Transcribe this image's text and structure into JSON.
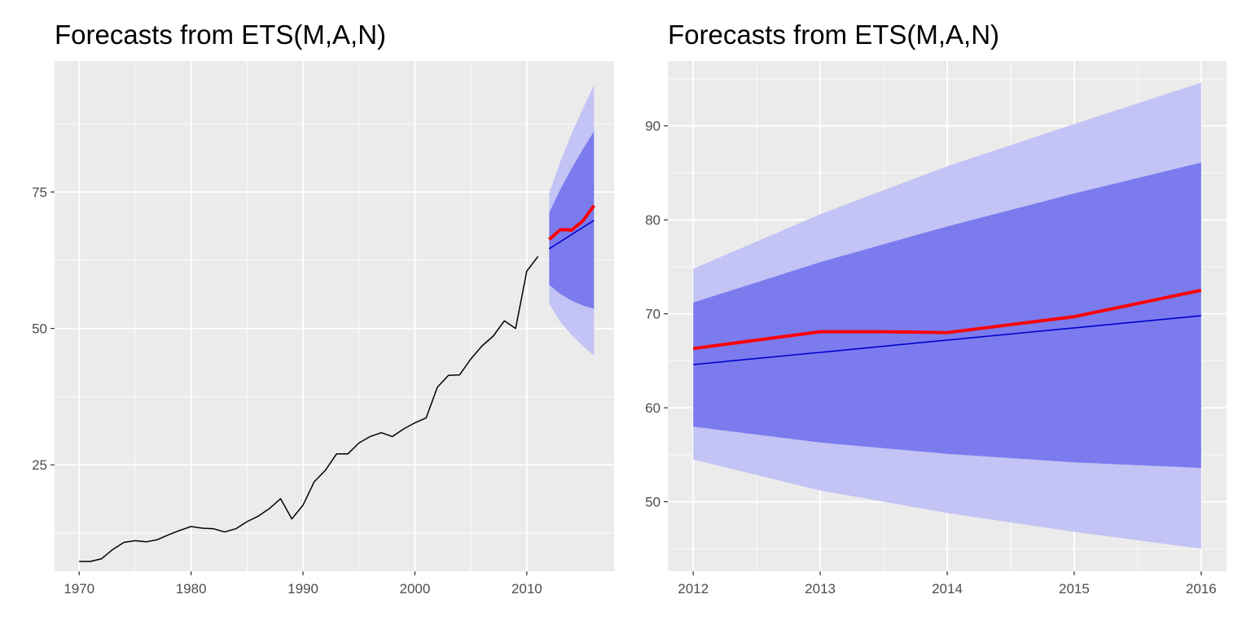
{
  "chart_data": [
    {
      "type": "line",
      "title": "Forecasts from ETS(M,A,N)",
      "xlabel": "",
      "ylabel": "",
      "xlim": [
        1967.8,
        2017.8
      ],
      "ylim": [
        5.5,
        99
      ],
      "x_ticks": [
        1970,
        1980,
        1990,
        2000,
        2010
      ],
      "y_ticks": [
        25,
        50,
        75
      ],
      "grid": true,
      "colors": {
        "panel": "#ebebeb",
        "grid": "#ffffff",
        "history": "#000000",
        "point_forecast": "#0000cc",
        "forecast_red": "#ff0000",
        "band80": "#7b7bee",
        "band95": "#c3c3f5"
      },
      "history": {
        "x": [
          1970,
          1971,
          1972,
          1973,
          1974,
          1975,
          1976,
          1977,
          1978,
          1979,
          1980,
          1981,
          1982,
          1983,
          1984,
          1985,
          1986,
          1987,
          1988,
          1989,
          1990,
          1991,
          1992,
          1993,
          1994,
          1995,
          1996,
          1997,
          1998,
          1999,
          2000,
          2001,
          2002,
          2003,
          2004,
          2005,
          2006,
          2007,
          2008,
          2009,
          2010,
          2011
        ],
        "y": [
          7.3,
          7.3,
          7.8,
          9.5,
          10.8,
          11.1,
          10.9,
          11.3,
          12.2,
          13.0,
          13.7,
          13.4,
          13.3,
          12.7,
          13.3,
          14.6,
          15.6,
          17.0,
          18.8,
          15.1,
          17.6,
          21.9,
          24.0,
          27.0,
          27.0,
          29.0,
          30.2,
          30.9,
          30.2,
          31.6,
          32.7,
          33.6,
          39.2,
          41.4,
          41.5,
          44.4,
          46.8,
          48.6,
          51.4,
          50.0,
          60.5,
          63.2
        ]
      },
      "forecast": {
        "x": [
          2012,
          2013,
          2014,
          2015,
          2016
        ],
        "point": [
          64.6,
          65.9,
          67.2,
          68.5,
          69.8
        ],
        "lo80": [
          58.0,
          56.3,
          55.1,
          54.2,
          53.6
        ],
        "hi80": [
          71.2,
          75.5,
          79.3,
          82.8,
          86.1
        ],
        "lo95": [
          54.5,
          51.2,
          48.8,
          46.8,
          45.0
        ],
        "hi95": [
          74.8,
          80.6,
          85.7,
          90.2,
          94.6
        ]
      },
      "red_line": {
        "x": [
          2012,
          2013,
          2013.5,
          2014,
          2015,
          2016
        ],
        "y": [
          66.3,
          68.1,
          68.1,
          68.0,
          69.7,
          72.5
        ]
      }
    },
    {
      "type": "line",
      "title": "Forecasts from ETS(M,A,N)",
      "xlabel": "",
      "ylabel": "",
      "xlim": [
        2011.8,
        2016.2
      ],
      "ylim": [
        42.6,
        96.9
      ],
      "x_ticks": [
        2012,
        2013,
        2014,
        2015,
        2016
      ],
      "y_ticks": [
        50,
        60,
        70,
        80,
        90
      ],
      "grid": true,
      "colors": {
        "panel": "#ebebeb",
        "grid": "#ffffff",
        "point_forecast": "#0000cc",
        "forecast_red": "#ff0000",
        "band80": "#7b7bee",
        "band95": "#c3c3f5"
      },
      "forecast": {
        "x": [
          2012,
          2013,
          2014,
          2015,
          2016
        ],
        "point": [
          64.6,
          65.9,
          67.2,
          68.5,
          69.8
        ],
        "lo80": [
          58.0,
          56.3,
          55.1,
          54.2,
          53.6
        ],
        "hi80": [
          71.2,
          75.5,
          79.3,
          82.8,
          86.1
        ],
        "lo95": [
          54.5,
          51.2,
          48.8,
          46.8,
          45.0
        ],
        "hi95": [
          74.8,
          80.6,
          85.7,
          90.2,
          94.6
        ]
      },
      "red_line": {
        "x": [
          2012,
          2013,
          2013.5,
          2014,
          2015,
          2016
        ],
        "y": [
          66.3,
          68.1,
          68.1,
          68.0,
          69.7,
          72.5
        ]
      }
    }
  ]
}
